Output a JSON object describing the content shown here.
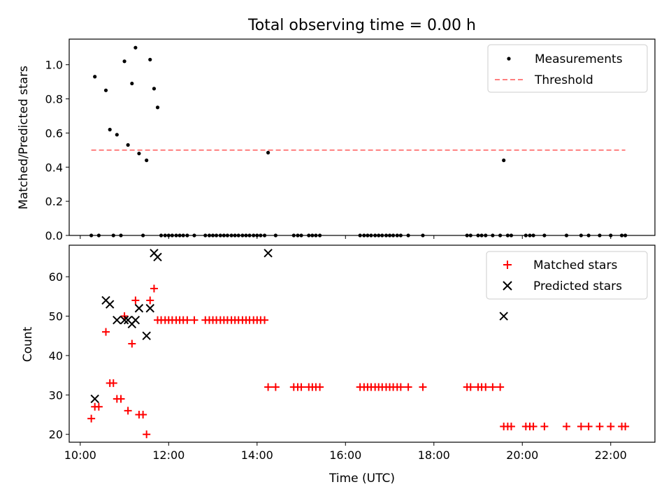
{
  "chart_data": [
    {
      "type": "scatter",
      "title": "Total observing time = 0.00 h",
      "xlabel": "",
      "ylabel": "Matched/Predicted stars",
      "x_unit": "hours (UTC)",
      "xlim": [
        9.75,
        23.0
      ],
      "ylim": [
        0,
        1.15
      ],
      "yticks": [
        0.0,
        0.2,
        0.4,
        0.6,
        0.8,
        1.0
      ],
      "ytick_labels": [
        "0.0",
        "0.2",
        "0.4",
        "0.6",
        "0.8",
        "1.0"
      ],
      "xticks": [
        10,
        12,
        14,
        16,
        18,
        20,
        22
      ],
      "legend": {
        "position": "top-right",
        "entries": [
          "Measurements",
          "Threshold"
        ]
      },
      "series": [
        {
          "name": "Measurements",
          "kind": "scatter",
          "color": "#000000",
          "x": [
            10.33,
            10.58,
            10.67,
            10.83,
            11.0,
            11.08,
            11.17,
            11.25,
            11.33,
            11.5,
            11.58,
            11.67,
            11.75,
            14.25,
            19.58,
            10.25,
            10.42,
            10.75,
            10.92,
            11.42,
            11.83,
            11.92,
            12.0,
            12.08,
            12.17,
            12.25,
            12.33,
            12.42,
            12.58,
            12.83,
            12.92,
            13.0,
            13.08,
            13.17,
            13.25,
            13.33,
            13.42,
            13.5,
            13.58,
            13.67,
            13.75,
            13.83,
            13.92,
            14.0,
            14.08,
            14.17,
            14.42,
            14.83,
            14.92,
            15.0,
            15.17,
            15.25,
            15.33,
            15.42,
            16.33,
            16.42,
            16.5,
            16.58,
            16.67,
            16.75,
            16.83,
            16.92,
            17.0,
            17.08,
            17.17,
            17.25,
            17.42,
            17.75,
            18.75,
            18.83,
            19.0,
            19.08,
            19.17,
            19.33,
            19.5,
            19.67,
            19.75,
            20.08,
            20.17,
            20.25,
            20.5,
            21.0,
            21.33,
            21.5,
            21.75,
            22.0,
            22.25,
            22.33
          ],
          "y": [
            0.93,
            0.85,
            0.62,
            0.59,
            1.02,
            0.53,
            0.89,
            1.1,
            0.48,
            0.44,
            1.03,
            0.86,
            0.75,
            0.485,
            0.44,
            0,
            0,
            0,
            0,
            0,
            0,
            0,
            0,
            0,
            0,
            0,
            0,
            0,
            0,
            0,
            0,
            0,
            0,
            0,
            0,
            0,
            0,
            0,
            0,
            0,
            0,
            0,
            0,
            0,
            0,
            0,
            0,
            0,
            0,
            0,
            0,
            0,
            0,
            0,
            0,
            0,
            0,
            0,
            0,
            0,
            0,
            0,
            0,
            0,
            0,
            0,
            0,
            0,
            0,
            0,
            0,
            0,
            0,
            0,
            0,
            0,
            0,
            0,
            0,
            0,
            0,
            0,
            0,
            0,
            0,
            0,
            0,
            0
          ]
        },
        {
          "name": "Threshold",
          "kind": "line",
          "style": "dashed",
          "color": "#ff7f7f",
          "x": [
            10.25,
            22.33
          ],
          "y": [
            0.5,
            0.5
          ]
        }
      ]
    },
    {
      "type": "scatter",
      "title": "",
      "xlabel": "Time (UTC)",
      "ylabel": "Count",
      "x_unit": "hours (UTC)",
      "xlim": [
        9.75,
        23.0
      ],
      "ylim": [
        18,
        68
      ],
      "yticks": [
        20,
        30,
        40,
        50,
        60
      ],
      "ytick_labels": [
        "20",
        "30",
        "40",
        "50",
        "60"
      ],
      "xticks": [
        10,
        12,
        14,
        16,
        18,
        20,
        22
      ],
      "xtick_labels": [
        "10:00",
        "12:00",
        "14:00",
        "16:00",
        "18:00",
        "20:00",
        "22:00"
      ],
      "legend": {
        "position": "top-right",
        "entries": [
          "Matched stars",
          "Predicted stars"
        ]
      },
      "series": [
        {
          "name": "Matched stars",
          "marker": "plus",
          "color": "#ff0000",
          "x": [
            10.25,
            10.33,
            10.42,
            10.58,
            10.67,
            10.75,
            10.83,
            10.92,
            11.0,
            11.08,
            11.17,
            11.25,
            11.33,
            11.42,
            11.5,
            11.58,
            11.67,
            11.75,
            11.83,
            11.92,
            12.0,
            12.08,
            12.17,
            12.25,
            12.33,
            12.42,
            12.58,
            12.83,
            12.92,
            13.0,
            13.08,
            13.17,
            13.25,
            13.33,
            13.42,
            13.5,
            13.58,
            13.67,
            13.75,
            13.83,
            13.92,
            14.0,
            14.08,
            14.17,
            14.25,
            14.42,
            14.83,
            14.92,
            15.0,
            15.17,
            15.25,
            15.33,
            15.42,
            16.33,
            16.42,
            16.5,
            16.58,
            16.67,
            16.75,
            16.83,
            16.92,
            17.0,
            17.08,
            17.17,
            17.25,
            17.42,
            17.75,
            18.75,
            18.83,
            19.0,
            19.08,
            19.17,
            19.33,
            19.5,
            19.58,
            19.67,
            19.75,
            20.08,
            20.17,
            20.25,
            20.5,
            21.0,
            21.33,
            21.5,
            21.75,
            22.0,
            22.25,
            22.33
          ],
          "y": [
            24,
            27,
            27,
            46,
            33,
            33,
            29,
            29,
            50,
            26,
            43,
            54,
            25,
            25,
            20,
            54,
            57,
            49,
            49,
            49,
            49,
            49,
            49,
            49,
            49,
            49,
            49,
            49,
            49,
            49,
            49,
            49,
            49,
            49,
            49,
            49,
            49,
            49,
            49,
            49,
            49,
            49,
            49,
            49,
            32,
            32,
            32,
            32,
            32,
            32,
            32,
            32,
            32,
            32,
            32,
            32,
            32,
            32,
            32,
            32,
            32,
            32,
            32,
            32,
            32,
            32,
            32,
            32,
            32,
            32,
            32,
            32,
            32,
            32,
            22,
            22,
            22,
            22,
            22,
            22,
            22,
            22,
            22,
            22,
            22,
            22,
            22,
            22
          ]
        },
        {
          "name": "Predicted stars",
          "marker": "x",
          "color": "#000000",
          "x": [
            10.33,
            10.58,
            10.67,
            10.83,
            11.0,
            11.08,
            11.17,
            11.25,
            11.33,
            11.5,
            11.58,
            11.67,
            11.75,
            14.25,
            19.58
          ],
          "y": [
            29,
            54,
            53,
            49,
            49,
            49,
            48,
            49,
            52,
            45,
            52,
            66,
            65,
            66,
            50
          ]
        }
      ]
    }
  ]
}
